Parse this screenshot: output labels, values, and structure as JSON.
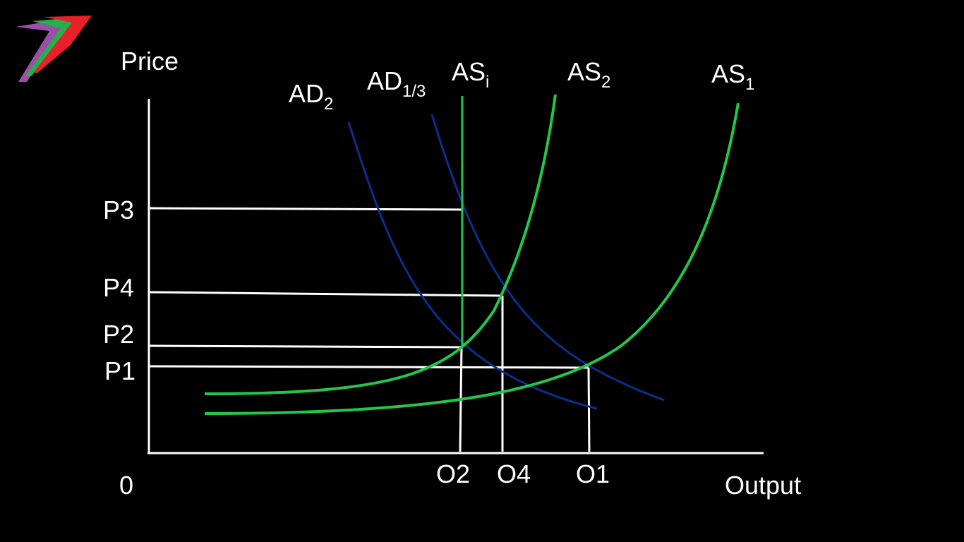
{
  "labels": {
    "y_axis": "Price",
    "x_axis": "Output",
    "origin": "0"
  },
  "price_levels": [
    "P3",
    "P4",
    "P2",
    "P1"
  ],
  "output_levels": [
    "O2",
    "O4",
    "O1"
  ],
  "curves": {
    "ad2": {
      "base": "AD",
      "sub": "2"
    },
    "ad13": {
      "base": "AD",
      "sub": "1/3"
    },
    "asi": {
      "base": "AS",
      "sub": "i"
    },
    "as2": {
      "base": "AS",
      "sub": "2"
    },
    "as1": {
      "base": "AS",
      "sub": "1"
    }
  },
  "colors": {
    "background": "#000000",
    "axis": "#ffffff",
    "guide": "#ffffff",
    "supply": "#22c74a",
    "demand": "#0b2f8f",
    "logo": [
      "#9b4fa5",
      "#25b14a",
      "#e8202a"
    ]
  }
}
